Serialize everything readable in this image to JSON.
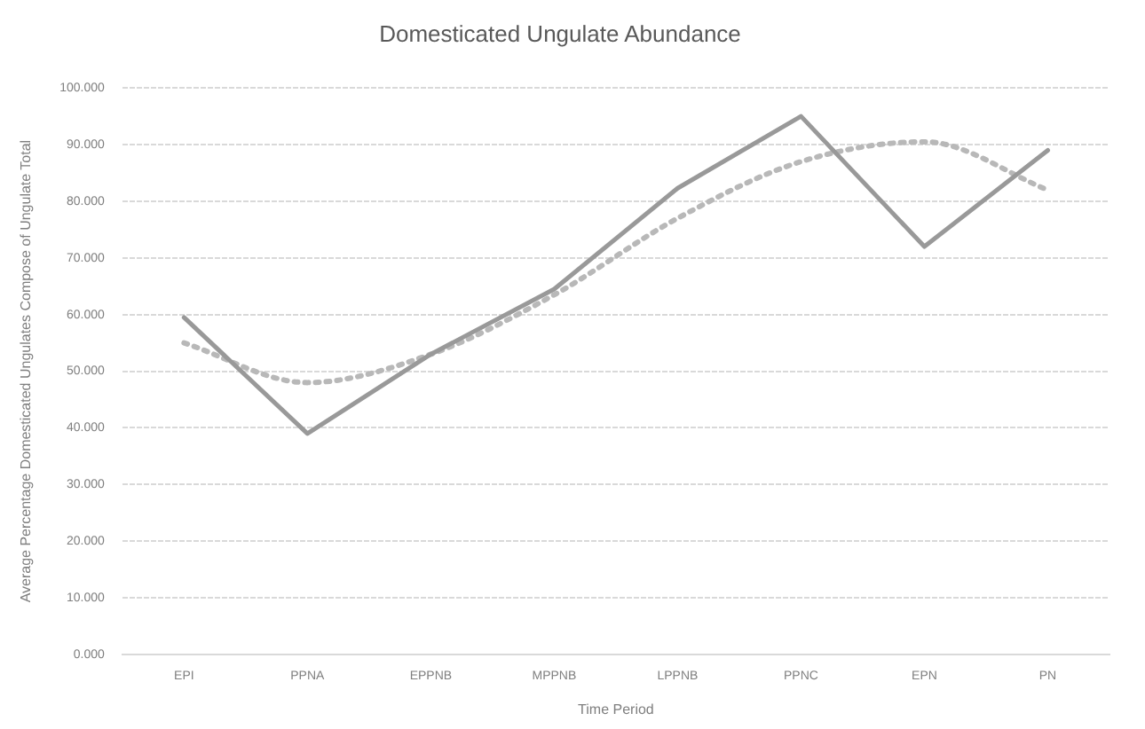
{
  "chart_data": {
    "type": "line",
    "title": "Domesticated Ungulate Abundance",
    "xlabel": "Time Period",
    "ylabel": "Average Percentage Domesticated Ungulates Compose of Ungulate Total",
    "categories": [
      "EPI",
      "PPNA",
      "EPPNB",
      "MPPNB",
      "LPPNB",
      "PPNC",
      "EPN",
      "PN"
    ],
    "series": [
      {
        "color": "#999999",
        "values": [
          59.5,
          39,
          53,
          64.5,
          82.3,
          95,
          72,
          89
        ],
        "line_style": "solid"
      },
      {
        "color": "#b8b8b8",
        "values": [
          55,
          48,
          53,
          63.5,
          77,
          87,
          90.5,
          82
        ],
        "line_style": "dotted"
      }
    ],
    "ylim": [
      0,
      100
    ],
    "yticks": [
      {
        "value": 0,
        "label": "0.000"
      },
      {
        "value": 10,
        "label": "10.000"
      },
      {
        "value": 20,
        "label": "20.000"
      },
      {
        "value": 30,
        "label": "30.000"
      },
      {
        "value": 40,
        "label": "40.000"
      },
      {
        "value": 50,
        "label": "50.000"
      },
      {
        "value": 60,
        "label": "60.000"
      },
      {
        "value": 70,
        "label": "70.000"
      },
      {
        "value": 80,
        "label": "80.000"
      },
      {
        "value": 90,
        "label": "90.000"
      },
      {
        "value": 100,
        "label": "100.000"
      }
    ],
    "grid": "y",
    "legend": false,
    "marker": "none"
  }
}
